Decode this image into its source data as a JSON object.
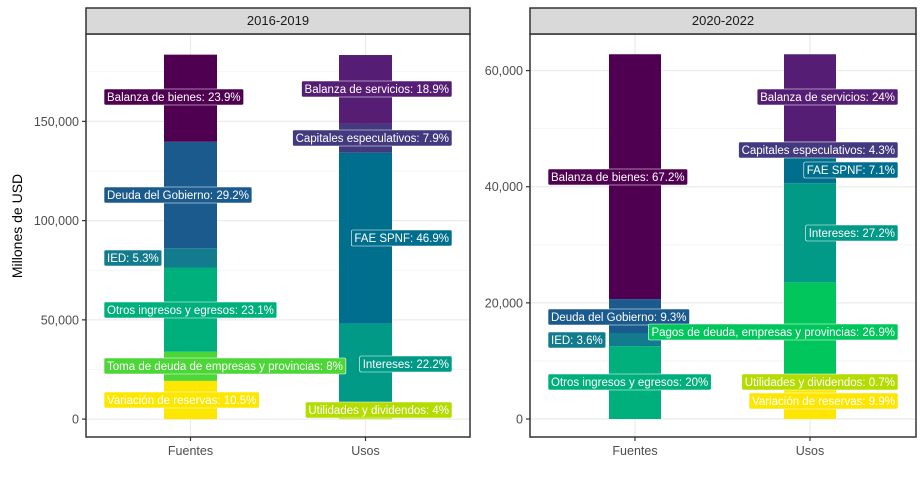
{
  "chart_data": {
    "type": "bar",
    "stacked": true,
    "ylabel": "Millones de USD",
    "xlabel": "",
    "categories": [
      "Fuentes",
      "Usos"
    ],
    "colors": {
      "Balanza de bienes": "#4f0050",
      "Deuda del Gobierno": "#1b5a8c",
      "IED": "#127b8e",
      "Otros ingresos y egresos": "#00b07c",
      "Toma de deuda de empresas y provincias": "#4cd637",
      "Variación de reservas": "#fde600",
      "Balanza de servicios": "#561d75",
      "Capitales especulativos": "#43397f",
      "FAE SPNF": "#006f8e",
      "Intereses": "#009a86",
      "Pagos de deuda, empresas y provincias": "#00c65c",
      "Utilidades y dividendos": "#b4dc00"
    },
    "panels": [
      {
        "title": "2016-2019",
        "ylim": [
          -9000,
          194000
        ],
        "yticks": [
          0,
          50000,
          100000,
          150000
        ],
        "ytick_labels": [
          "0",
          "50,000",
          "100,000",
          "150,000"
        ],
        "total": 183600,
        "bars": [
          {
            "category": "Fuentes",
            "segments": [
              {
                "name": "Variación de reservas",
                "pct": 10.5,
                "label": "Variación de reservas: 10.5%"
              },
              {
                "name": "Toma de deuda de empresas y provincias",
                "pct": 8,
                "label": "Toma de deuda de empresas y provincias: 8%"
              },
              {
                "name": "Otros ingresos y egresos",
                "pct": 23.1,
                "label": "Otros ingresos y egresos: 23.1%"
              },
              {
                "name": "IED",
                "pct": 5.3,
                "label": "IED: 5.3%"
              },
              {
                "name": "Deuda del Gobierno",
                "pct": 29.2,
                "label": "Deuda del Gobierno: 29.2%"
              },
              {
                "name": "Balanza de bienes",
                "pct": 23.9,
                "label": "Balanza de bienes: 23.9%"
              }
            ]
          },
          {
            "category": "Usos",
            "segments": [
              {
                "name": "Utilidades y dividendos",
                "pct": 4,
                "label": "Utilidades y dividendos: 4%"
              },
              {
                "name": "Intereses",
                "pct": 22.2,
                "label": "Intereses: 22.2%"
              },
              {
                "name": "FAE SPNF",
                "pct": 46.9,
                "label": "FAE SPNF: 46.9%"
              },
              {
                "name": "Capitales especulativos",
                "pct": 7.9,
                "label": "Capitales especulativos: 7.9%"
              },
              {
                "name": "Balanza de servicios",
                "pct": 18.9,
                "label": "Balanza de servicios: 18.9%"
              }
            ]
          }
        ]
      },
      {
        "title": "2020-2022",
        "ylim": [
          -3100,
          66300
        ],
        "yticks": [
          0,
          20000,
          40000,
          60000
        ],
        "ytick_labels": [
          "0",
          "20,000",
          "40,000",
          "60,000"
        ],
        "total": 62750,
        "bars": [
          {
            "category": "Fuentes",
            "segments": [
              {
                "name": "Otros ingresos y egresos",
                "pct": 20,
                "label": "Otros ingresos y egresos: 20%"
              },
              {
                "name": "IED",
                "pct": 3.6,
                "label": "IED: 3.6%"
              },
              {
                "name": "Deuda del Gobierno",
                "pct": 9.3,
                "label": "Deuda del Gobierno: 9.3%"
              },
              {
                "name": "Balanza de bienes",
                "pct": 67.2,
                "label": "Balanza de bienes: 67.2%"
              }
            ]
          },
          {
            "category": "Usos",
            "segments": [
              {
                "name": "Variación de reservas",
                "pct": 9.9,
                "label": "Variación de reservas: 9.9%"
              },
              {
                "name": "Utilidades y dividendos",
                "pct": 0.7,
                "label": "Utilidades y dividendos: 0.7%"
              },
              {
                "name": "Pagos de deuda, empresas y provincias",
                "pct": 26.9,
                "label": "Pagos de deuda, empresas y provincias: 26.9%"
              },
              {
                "name": "Intereses",
                "pct": 27.2,
                "label": "Intereses: 27.2%"
              },
              {
                "name": "FAE SPNF",
                "pct": 7.1,
                "label": "FAE SPNF: 7.1%"
              },
              {
                "name": "Capitales especulativos",
                "pct": 4.3,
                "label": "Capitales especulativos: 4.3%"
              },
              {
                "name": "Balanza de servicios",
                "pct": 24,
                "label": "Balanza de servicios: 24%"
              }
            ]
          }
        ]
      }
    ]
  }
}
